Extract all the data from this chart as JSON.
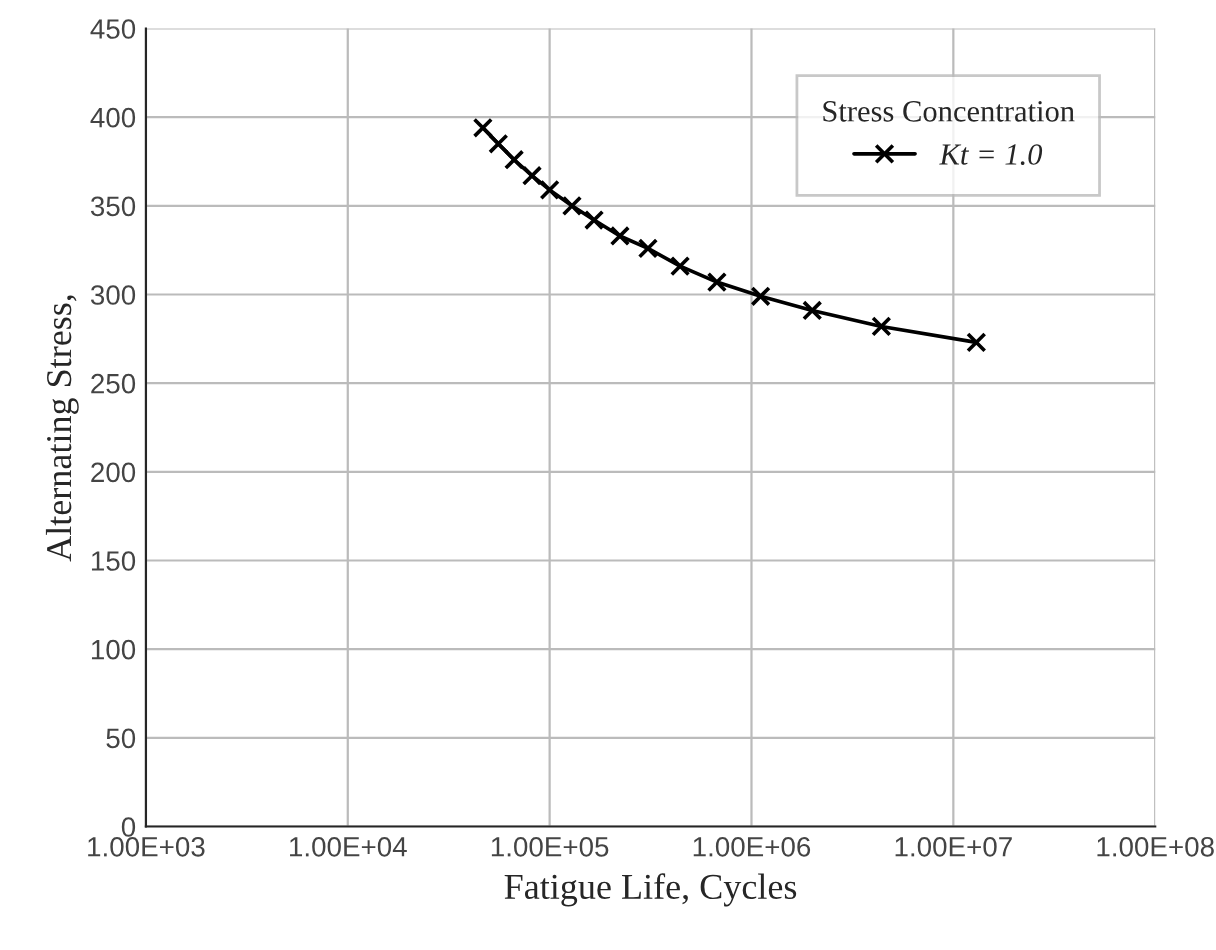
{
  "chart_data": {
    "type": "line",
    "xlabel": "Fatigue Life, Cycles",
    "ylabel": "Alternating Stress,",
    "legend_title": "Stress Concentration",
    "log": "x",
    "xlim": [
      1000,
      100000000
    ],
    "xticks": [
      {
        "value": 1000,
        "label": "1.00E+03"
      },
      {
        "value": 10000,
        "label": "1.00E+04"
      },
      {
        "value": 100000,
        "label": "1.00E+05"
      },
      {
        "value": 1000000,
        "label": "1.00E+06"
      },
      {
        "value": 10000000,
        "label": "1.00E+07"
      },
      {
        "value": 100000000,
        "label": "1.00E+08"
      }
    ],
    "ylim": [
      0,
      450
    ],
    "yticks": [
      0,
      50,
      100,
      150,
      200,
      250,
      300,
      350,
      400,
      450
    ],
    "grid": true,
    "legend": "top right",
    "marker": "cross",
    "line_style": "solid",
    "series": [
      {
        "name": "Kt = 1.0",
        "color": "#000000",
        "x": [
          46700,
          55700,
          66700,
          81800,
          100000,
          129000,
          166000,
          223000,
          307000,
          443000,
          674000,
          1110000,
          2000000,
          4400000,
          13000000
        ],
        "values": [
          394,
          385,
          376,
          367,
          359,
          350,
          342,
          333,
          326,
          316,
          307,
          299,
          291,
          282,
          273
        ]
      }
    ]
  }
}
